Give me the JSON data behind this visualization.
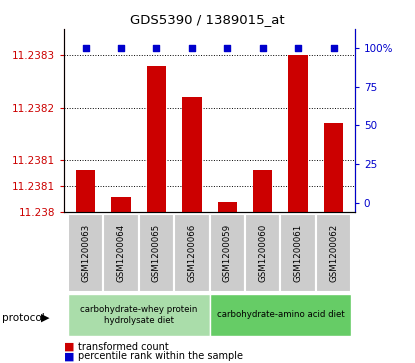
{
  "title": "GDS5390 / 1389015_at",
  "samples": [
    "GSM1200063",
    "GSM1200064",
    "GSM1200065",
    "GSM1200066",
    "GSM1200059",
    "GSM1200060",
    "GSM1200061",
    "GSM1200062"
  ],
  "transformed_counts": [
    11.23808,
    11.23803,
    11.23828,
    11.23822,
    11.23802,
    11.23808,
    11.2383,
    11.23817
  ],
  "percentile_ranks": [
    100,
    100,
    100,
    100,
    100,
    100,
    100,
    100
  ],
  "y_min": 11.238,
  "y_max": 11.23835,
  "left_tick_vals": [
    11.238,
    11.23805,
    11.2381,
    11.2382,
    11.2383
  ],
  "left_tick_labels": [
    "11.238",
    "11.2381",
    "11.2381",
    "11.2382",
    "11.2383"
  ],
  "right_y_ticks": [
    0,
    25,
    50,
    75,
    100
  ],
  "right_y_labels": [
    "0",
    "25",
    "50",
    "75",
    "100%"
  ],
  "bar_color": "#cc0000",
  "dot_color": "#0000cc",
  "protocol1_label": "carbohydrate-whey protein\nhydrolysate diet",
  "protocol1_color": "#aaddaa",
  "protocol2_label": "carbohydrate-amino acid diet",
  "protocol2_color": "#66cc66",
  "legend_bar_label": "transformed count",
  "legend_dot_label": "percentile rank within the sample",
  "protocol_label": "protocol",
  "tick_label_color_left": "#cc0000",
  "tick_label_color_right": "#0000cc",
  "sample_box_color": "#cccccc",
  "grid_color": "#000000",
  "grid_linestyle": ":"
}
